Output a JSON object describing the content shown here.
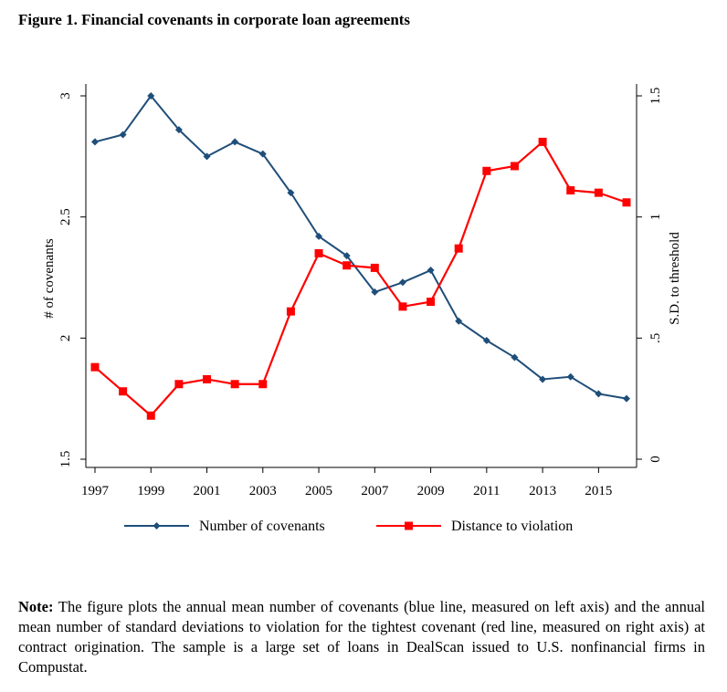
{
  "figure": {
    "title": "Figure 1. Financial covenants in corporate loan agreements"
  },
  "note": {
    "label": "Note:",
    "text": " The figure plots the annual mean number of covenants (blue line, measured on left axis) and the annual mean number of standard deviations to violation for the tightest covenant (red line, measured on right axis) at contract origination. The sample is a large set of loans in DealScan issued to U.S. nonfinancial firms in Compustat."
  },
  "chart_data": {
    "type": "line",
    "x": [
      1997,
      1998,
      1999,
      2000,
      2001,
      2002,
      2003,
      2004,
      2005,
      2006,
      2007,
      2008,
      2009,
      2010,
      2011,
      2012,
      2013,
      2014,
      2015,
      2016
    ],
    "xticks": [
      1997,
      1999,
      2001,
      2003,
      2005,
      2007,
      2009,
      2011,
      2013,
      2015
    ],
    "xtick_labels": [
      "1997",
      "1999",
      "2001",
      "2003",
      "2005",
      "2007",
      "2009",
      "2011",
      "2013",
      "2015"
    ],
    "xlim": [
      1997,
      2016
    ],
    "left_axis": {
      "label": "# of covenants",
      "ylim": [
        1.5,
        3
      ],
      "ticks": [
        1.5,
        2,
        2.5,
        3
      ],
      "tick_labels": [
        "1.5",
        "2",
        "2.5",
        "3"
      ]
    },
    "right_axis": {
      "label": "S.D. to threshold",
      "ylim": [
        0,
        1.5
      ],
      "ticks": [
        0,
        0.5,
        1,
        1.5
      ],
      "tick_labels": [
        "0",
        ".5",
        "1",
        "1.5"
      ]
    },
    "series": [
      {
        "name": "Number of covenants",
        "axis": "left",
        "color": "#1f4e79",
        "marker": "diamond",
        "values": [
          2.81,
          2.84,
          3.0,
          2.86,
          2.75,
          2.81,
          2.76,
          2.6,
          2.42,
          2.34,
          2.19,
          2.23,
          2.28,
          2.07,
          1.99,
          1.92,
          1.83,
          1.84,
          1.77,
          1.75
        ]
      },
      {
        "name": "Distance to violation",
        "axis": "right",
        "color": "#ff0000",
        "marker": "square",
        "values": [
          0.38,
          0.28,
          0.18,
          0.31,
          0.33,
          0.31,
          0.31,
          0.61,
          0.85,
          0.8,
          0.79,
          0.63,
          0.65,
          0.87,
          1.19,
          1.21,
          1.31,
          1.11,
          1.1,
          1.06
        ]
      }
    ],
    "grid": false,
    "legend": "bottom"
  }
}
